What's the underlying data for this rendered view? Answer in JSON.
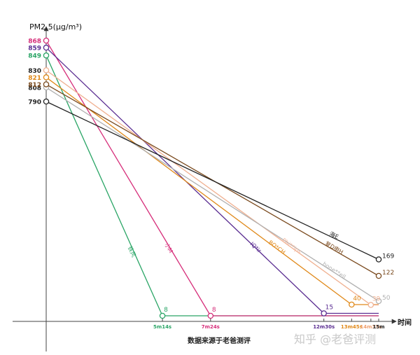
{
  "chart_data": {
    "type": "line",
    "ylabel": "PM2.5(μg/m³)",
    "xlabel": "时间",
    "source_note": "数据来源于老爸测评",
    "watermark": "知乎 @老爸评测",
    "x_ticks": [
      {
        "label": "5m14s",
        "color": "#2aa566"
      },
      {
        "label": "7m24s",
        "color": "#d62e7a"
      },
      {
        "label": "12m30s",
        "color": "#5a2d91"
      },
      {
        "label": "13m45s",
        "color": "#e0891a"
      },
      {
        "label": "14m37s",
        "color": "#f0a070"
      },
      {
        "label": "15m",
        "color": "#222222"
      }
    ],
    "y_ticks": [
      "868",
      "859",
      "849",
      "830",
      "821",
      "812",
      "808",
      "790"
    ],
    "series": [
      {
        "name": "铁风",
        "start": 849,
        "start_label": "849",
        "end_time": "5m14s",
        "end_value": 8,
        "end_label": "8",
        "color": "#2aa566"
      },
      {
        "name": "小M",
        "start": 868,
        "start_label": "868",
        "end_time": "7m24s",
        "end_value": 8,
        "end_label": "8",
        "color": "#d62e7a"
      },
      {
        "name": "IQ*ir",
        "start": 859,
        "start_label": "859",
        "end_time": "12m30s",
        "end_value": 15,
        "end_label": "15",
        "color": "#5a2d91"
      },
      {
        "name": "BO*CH",
        "start": 821,
        "start_label": "821",
        "end_time": "13m45s",
        "end_value": 40,
        "end_label": "40",
        "color": "#e0891a"
      },
      {
        "name": "Phi**ips",
        "start": 830,
        "start_label": "830",
        "end_time": "14m37s",
        "end_value": 39,
        "end_label": "39",
        "color": "#f0b090"
      },
      {
        "name": "hone**ell",
        "start": 808,
        "start_label": "808",
        "end_time": "15m",
        "end_value": 50,
        "end_label": "50",
        "color": "#b0b0b0"
      },
      {
        "name": "复D申H",
        "start": 812,
        "start_label": "812",
        "end_time": "15m",
        "end_value": 122,
        "end_label": "122",
        "color": "#7a4a1e"
      },
      {
        "name": "海E",
        "start": 790,
        "start_label": "790",
        "end_time": "15m",
        "end_value": 169,
        "end_label": "169",
        "color": "#222222"
      }
    ]
  }
}
